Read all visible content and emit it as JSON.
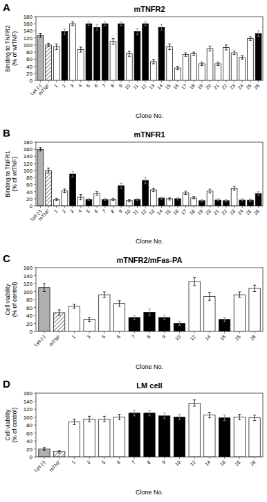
{
  "chart_data": [
    {
      "type": "bar",
      "title": "mTNFR2",
      "annotation": "A",
      "ylabel": "Binding to TNFR2\n(% of wtTNF)",
      "xlabel": "Clone No.",
      "categories": [
        "Lys (-)",
        "mTNF",
        "1",
        "2",
        "3",
        "4",
        "5",
        "6",
        "7",
        "8",
        "9",
        "10",
        "11",
        "12",
        "13",
        "14",
        "15",
        "16",
        "17",
        "18",
        "19",
        "20",
        "21",
        "22",
        "23",
        "24",
        "25",
        "26"
      ],
      "values": [
        127,
        100,
        95,
        138,
        160,
        87,
        160,
        150,
        160,
        110,
        160,
        75,
        138,
        160,
        53,
        150,
        95,
        35,
        73,
        75,
        47,
        90,
        47,
        93,
        78,
        65,
        118,
        132
      ],
      "errors": [
        5,
        5,
        8,
        8,
        5,
        7,
        5,
        8,
        5,
        8,
        5,
        7,
        8,
        5,
        6,
        8,
        8,
        5,
        5,
        5,
        5,
        7,
        5,
        7,
        5,
        5,
        5,
        8
      ],
      "colors": [
        "gray",
        "hatch",
        "white",
        "black",
        "white",
        "white",
        "black",
        "black",
        "black",
        "white",
        "black",
        "white",
        "black",
        "black",
        "white",
        "black",
        "white",
        "white",
        "white",
        "white",
        "white",
        "white",
        "white",
        "white",
        "white",
        "white",
        "white",
        "black"
      ],
      "ylim": [
        0,
        180
      ],
      "yticks": [
        0,
        20,
        40,
        60,
        80,
        100,
        120,
        140,
        160,
        180
      ],
      "grid": false
    },
    {
      "type": "bar",
      "title": "mTNFR1",
      "annotation": "B",
      "ylabel": "Binding to TNFR1\n(% of wtTNF)",
      "xlabel": "Clone No.",
      "categories": [
        "Lys (-)",
        "mTNF",
        "1",
        "2",
        "3",
        "4",
        "5",
        "6",
        "7",
        "8",
        "9",
        "10",
        "11",
        "12",
        "13",
        "14",
        "15",
        "16",
        "17",
        "18",
        "19",
        "20",
        "21",
        "22",
        "23",
        "24",
        "25",
        "26"
      ],
      "values": [
        160,
        100,
        18,
        43,
        90,
        25,
        18,
        35,
        18,
        18,
        57,
        15,
        18,
        72,
        45,
        22,
        20,
        20,
        37,
        23,
        15,
        42,
        17,
        15,
        50,
        17,
        16,
        35
      ],
      "errors": [
        5,
        7,
        3,
        5,
        8,
        7,
        3,
        5,
        3,
        3,
        7,
        3,
        3,
        8,
        5,
        3,
        3,
        3,
        5,
        3,
        3,
        5,
        3,
        3,
        5,
        3,
        3,
        5
      ],
      "colors": [
        "gray",
        "hatch",
        "white",
        "white",
        "black",
        "white",
        "black",
        "white",
        "black",
        "white",
        "black",
        "white",
        "black",
        "black",
        "white",
        "black",
        "white",
        "black",
        "white",
        "white",
        "black",
        "white",
        "black",
        "black",
        "white",
        "black",
        "black",
        "black"
      ],
      "ylim": [
        0,
        180
      ],
      "yticks": [
        0,
        20,
        40,
        60,
        80,
        100,
        120,
        140,
        160,
        180
      ],
      "grid": false
    },
    {
      "type": "bar",
      "title": "mTNFR2/mFas-PA",
      "annotation": "C",
      "ylabel": "Cell viability\n(% of control)",
      "xlabel": "Clone No.",
      "categories": [
        "Lys (-)",
        "mTNF",
        "1",
        "3",
        "5",
        "6",
        "7",
        "8",
        "9",
        "10",
        "12",
        "14",
        "16",
        "25",
        "26"
      ],
      "values": [
        110,
        47,
        63,
        30,
        92,
        70,
        35,
        48,
        35,
        20,
        125,
        88,
        30,
        92,
        108
      ],
      "errors": [
        10,
        7,
        5,
        5,
        7,
        7,
        5,
        8,
        5,
        5,
        10,
        10,
        5,
        7,
        8
      ],
      "colors": [
        "gray",
        "hatch",
        "white",
        "white",
        "white",
        "white",
        "black",
        "black",
        "black",
        "black",
        "white",
        "white",
        "black",
        "white",
        "white"
      ],
      "ylim": [
        0,
        160
      ],
      "yticks": [
        0,
        20,
        40,
        60,
        80,
        100,
        120,
        140,
        160
      ],
      "grid": false
    },
    {
      "type": "bar",
      "title": "LM cell",
      "annotation": "D",
      "ylabel": "Cell viability\n(% of control)",
      "xlabel": "Clone No.",
      "categories": [
        "Lys (-)",
        "mTNF",
        "1",
        "3",
        "5",
        "6",
        "7",
        "8",
        "9",
        "10",
        "12",
        "14",
        "16",
        "25",
        "26"
      ],
      "values": [
        20,
        13,
        88,
        95,
        95,
        100,
        110,
        110,
        103,
        100,
        135,
        105,
        98,
        100,
        98
      ],
      "errors": [
        3,
        3,
        7,
        7,
        7,
        7,
        7,
        7,
        7,
        7,
        8,
        7,
        7,
        7,
        7
      ],
      "colors": [
        "gray",
        "hatch",
        "white",
        "white",
        "white",
        "white",
        "black",
        "black",
        "black",
        "black",
        "white",
        "white",
        "black",
        "white",
        "white"
      ],
      "ylim": [
        0,
        160
      ],
      "yticks": [
        0,
        20,
        40,
        60,
        80,
        100,
        120,
        140,
        160
      ],
      "grid": false
    }
  ]
}
